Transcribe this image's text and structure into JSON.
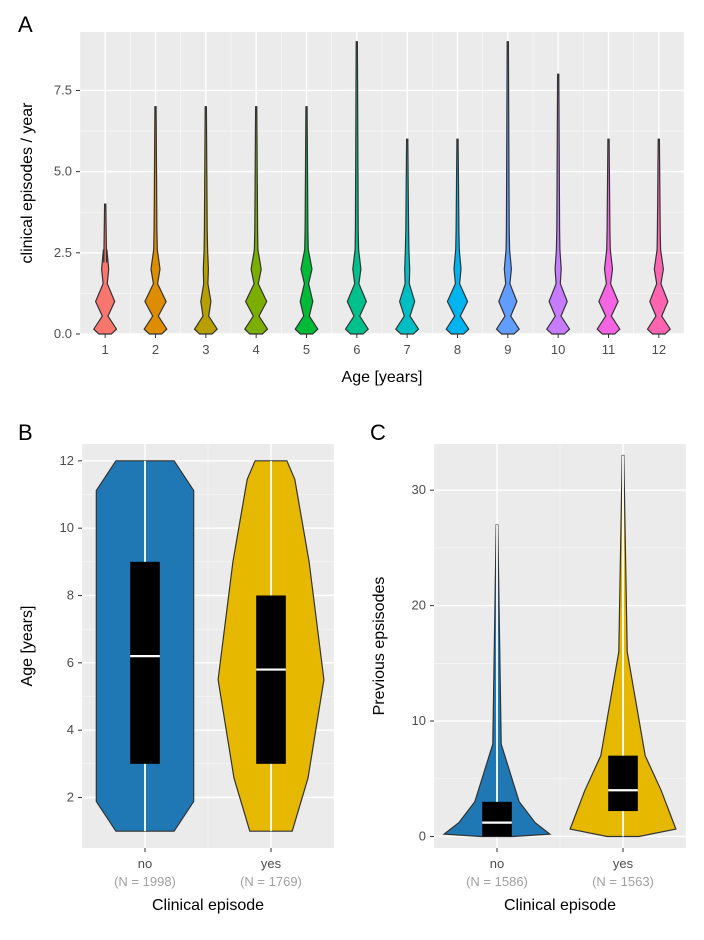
{
  "panelA": {
    "label": "A",
    "type": "violin",
    "xlabel": "Age [years]",
    "ylabel": "clinical episodes / year",
    "ylim": [
      0,
      9.3
    ],
    "yticks": [
      0.0,
      2.5,
      5.0,
      7.5
    ],
    "ytick_labels": [
      "0.0",
      "2.5",
      "5.0",
      "7.5"
    ],
    "categories": [
      "1",
      "2",
      "3",
      "4",
      "5",
      "6",
      "7",
      "8",
      "9",
      "10",
      "11",
      "12"
    ],
    "colors": [
      "#f8766d",
      "#de8c00",
      "#b79f00",
      "#7cae00",
      "#00ba38",
      "#00c08b",
      "#00bfc4",
      "#00b4f0",
      "#619cff",
      "#c77cff",
      "#f564e3",
      "#ff64b0"
    ],
    "max_values": [
      4.0,
      7.0,
      7.0,
      7.0,
      7.0,
      9.0,
      6.0,
      6.0,
      9.0,
      8.0,
      6.0,
      6.0
    ],
    "bulge_at_1": [
      0.38,
      0.42,
      0.2,
      0.42,
      0.25,
      0.38,
      0.3,
      0.4,
      0.36,
      0.36,
      0.38,
      0.36
    ],
    "bulge_at_2": [
      0.14,
      0.18,
      0.1,
      0.2,
      0.22,
      0.16,
      0.1,
      0.14,
      0.14,
      0.12,
      0.16,
      0.18
    ],
    "bulge_at_0": [
      0.45,
      0.45,
      0.45,
      0.45,
      0.45,
      0.45,
      0.45,
      0.45,
      0.45,
      0.45,
      0.45,
      0.45
    ],
    "background_color": "#ebebeb",
    "grid_color": "#ffffff",
    "label_fontsize": 16,
    "tick_fontsize": 13
  },
  "panelB": {
    "label": "B",
    "type": "violin-box",
    "xlabel": "Clinical episode",
    "ylabel": "Age [years]",
    "ylim": [
      0.5,
      12.5
    ],
    "yticks": [
      2,
      4,
      6,
      8,
      10,
      12
    ],
    "categories": [
      "no",
      "yes"
    ],
    "n_labels": [
      "(N = 1998)",
      "(N = 1769)"
    ],
    "colors": [
      "#1f78b4",
      "#e6b800"
    ],
    "quartiles": {
      "no": {
        "min": 1,
        "q1": 3,
        "median": 6.2,
        "q3": 9,
        "max": 12,
        "shape": "rect_flat"
      },
      "yes": {
        "min": 1,
        "q1": 3,
        "median": 5.8,
        "q3": 8,
        "max": 12,
        "shape": "bulge"
      }
    },
    "background_color": "#ebebeb"
  },
  "panelC": {
    "label": "C",
    "type": "violin-box",
    "xlabel": "Clinical episode",
    "ylabel": "Previous epsisodes",
    "ylim": [
      -1,
      34
    ],
    "yticks": [
      0,
      10,
      20,
      30
    ],
    "categories": [
      "no",
      "yes"
    ],
    "n_labels": [
      "(N = 1586)",
      "(N = 1563)"
    ],
    "colors": [
      "#1f78b4",
      "#e6b800"
    ],
    "quartiles": {
      "no": {
        "min": 0,
        "q1": 0,
        "median": 1.2,
        "q3": 3,
        "max": 27,
        "shape": "bottom_heavy",
        "neck": 8
      },
      "yes": {
        "min": 0,
        "q1": 2.2,
        "median": 4,
        "q3": 7,
        "max": 33,
        "shape": "bottom_heavy",
        "neck": 16
      }
    },
    "background_color": "#ebebeb"
  }
}
